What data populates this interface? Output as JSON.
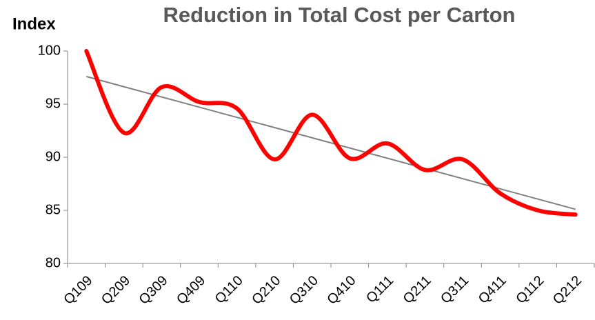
{
  "chart_data": {
    "type": "line",
    "title": "Reduction in Total Cost per Carton",
    "y_axis_label": "Index",
    "categories": [
      "Q109",
      "Q209",
      "Q309",
      "Q409",
      "Q110",
      "Q210",
      "Q310",
      "Q410",
      "Q111",
      "Q211",
      "Q311",
      "Q411",
      "Q112",
      "Q212"
    ],
    "values": [
      100,
      92.3,
      96.6,
      95.2,
      94.6,
      89.8,
      94.0,
      89.9,
      91.3,
      88.8,
      89.8,
      86.6,
      85.0,
      84.6
    ],
    "color": "#ff0000",
    "smooth": true,
    "trendline": {
      "start": 97.6,
      "end": 85.1,
      "color": "#808080"
    },
    "ylim": [
      80,
      100
    ],
    "yticks": [
      80,
      85,
      90,
      95,
      100
    ],
    "grid": false
  }
}
